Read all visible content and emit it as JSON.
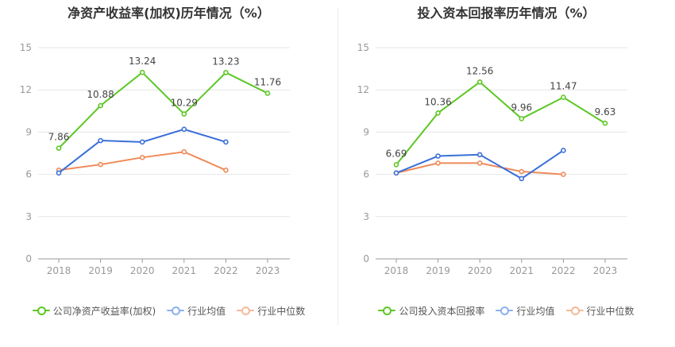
{
  "chart_data": [
    {
      "type": "line",
      "title": "净资产收益率(加权)历年情况（%）",
      "x": [
        "2018",
        "2019",
        "2020",
        "2021",
        "2022",
        "2023"
      ],
      "y_ticks": [
        "0",
        "3",
        "6",
        "9",
        "12",
        "15"
      ],
      "ylim": [
        0,
        15
      ],
      "grid": true,
      "legend_position": "bottom",
      "series": [
        {
          "name": "公司净资产收益率(加权)",
          "color": "#5dc725",
          "values": [
            7.86,
            10.88,
            13.24,
            10.29,
            13.23,
            11.76
          ],
          "data_labels": [
            "7.86",
            "10.88",
            "13.24",
            "10.29",
            "13.23",
            "11.76"
          ],
          "legend_line": "#5dc725",
          "legend_dot": "#5dc725"
        },
        {
          "name": "行业均值",
          "color": "#3a6fd8",
          "values": [
            6.1,
            8.4,
            8.3,
            9.2,
            8.3,
            null
          ],
          "data_labels": null,
          "legend_line": "#8db0ef",
          "legend_dot": "#8db0ef"
        },
        {
          "name": "行业中位数",
          "color": "#ef8a58",
          "values": [
            6.3,
            6.7,
            7.2,
            7.6,
            6.3,
            null
          ],
          "data_labels": null,
          "legend_line": "#f5b99a",
          "legend_dot": "#f5b99a"
        }
      ]
    },
    {
      "type": "line",
      "title": "投入资本回报率历年情况（%）",
      "x": [
        "2018",
        "2019",
        "2020",
        "2021",
        "2022",
        "2023"
      ],
      "y_ticks": [
        "0",
        "3",
        "6",
        "9",
        "12",
        "15"
      ],
      "ylim": [
        0,
        15
      ],
      "grid": true,
      "legend_position": "bottom",
      "series": [
        {
          "name": "公司投入资本回报率",
          "color": "#5dc725",
          "values": [
            6.69,
            10.36,
            12.56,
            9.96,
            11.47,
            9.63
          ],
          "data_labels": [
            "6.69",
            "10.36",
            "12.56",
            "9.96",
            "11.47",
            "9.63"
          ],
          "legend_line": "#5dc725",
          "legend_dot": "#5dc725"
        },
        {
          "name": "行业均值",
          "color": "#3a6fd8",
          "values": [
            6.1,
            7.3,
            7.4,
            5.7,
            7.7,
            null
          ],
          "data_labels": null,
          "legend_line": "#8db0ef",
          "legend_dot": "#8db0ef"
        },
        {
          "name": "行业中位数",
          "color": "#ef8a58",
          "values": [
            6.1,
            6.8,
            6.8,
            6.2,
            6.0,
            null
          ],
          "data_labels": null,
          "legend_line": "#f5b99a",
          "legend_dot": "#f5b99a"
        }
      ]
    }
  ]
}
